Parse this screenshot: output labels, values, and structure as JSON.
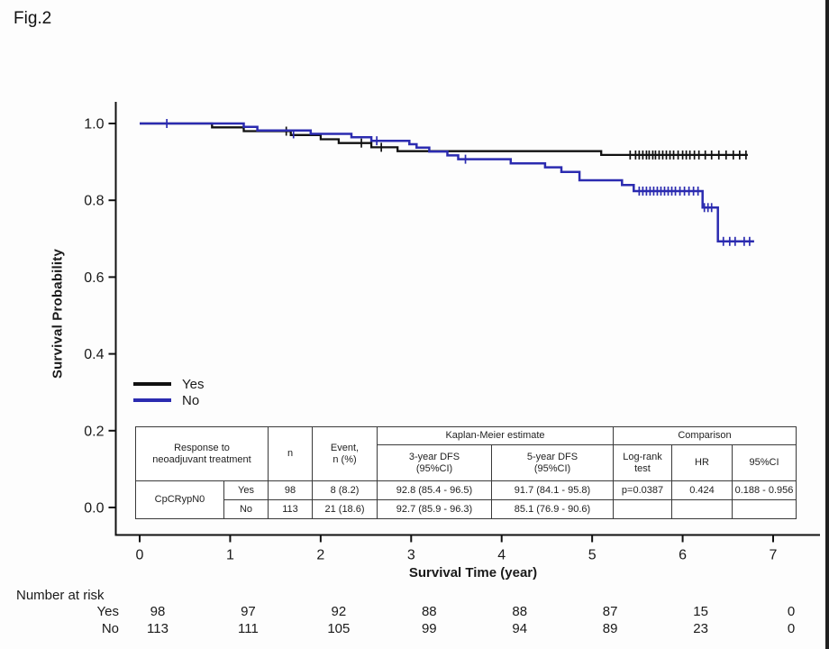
{
  "figure_label": "Fig.2",
  "axes": {
    "y_label": "Survival Probability",
    "x_label": "Survival Time (year)",
    "y_ticks": [
      0.0,
      0.2,
      0.4,
      0.6,
      0.8,
      1.0
    ],
    "x_ticks": [
      0,
      1,
      2,
      3,
      4,
      5,
      6,
      7
    ]
  },
  "legend": [
    {
      "label": "Yes",
      "color": "#111111"
    },
    {
      "label": "No",
      "color": "#2b2bb0"
    }
  ],
  "chart_data": {
    "type": "line",
    "subtype": "kaplan-meier-step",
    "title": "Fig.2",
    "xlabel": "Survival Time (year)",
    "ylabel": "Survival Probability",
    "xlim": [
      0,
      7
    ],
    "ylim": [
      0,
      1.05
    ],
    "grid": false,
    "legend_position": "left-middle",
    "series": [
      {
        "name": "Yes",
        "color": "#111111",
        "end": 6.72,
        "steps": [
          [
            0,
            1.0
          ],
          [
            0.8,
            0.99
          ],
          [
            1.15,
            0.98
          ],
          [
            1.67,
            0.97
          ],
          [
            2.0,
            0.959
          ],
          [
            2.2,
            0.949
          ],
          [
            2.56,
            0.938
          ],
          [
            2.85,
            0.928
          ],
          [
            5.1,
            0.918
          ]
        ],
        "censors": [
          [
            1.62,
            0.98
          ],
          [
            2.45,
            0.949
          ],
          [
            2.67,
            0.938
          ],
          [
            5.42,
            0.918
          ],
          [
            5.48,
            0.918
          ],
          [
            5.52,
            0.918
          ],
          [
            5.56,
            0.918
          ],
          [
            5.6,
            0.918
          ],
          [
            5.63,
            0.918
          ],
          [
            5.67,
            0.918
          ],
          [
            5.7,
            0.918
          ],
          [
            5.74,
            0.918
          ],
          [
            5.78,
            0.918
          ],
          [
            5.82,
            0.918
          ],
          [
            5.86,
            0.918
          ],
          [
            5.9,
            0.918
          ],
          [
            5.95,
            0.918
          ],
          [
            6.0,
            0.918
          ],
          [
            6.04,
            0.918
          ],
          [
            6.08,
            0.918
          ],
          [
            6.13,
            0.918
          ],
          [
            6.18,
            0.918
          ],
          [
            6.25,
            0.918
          ],
          [
            6.32,
            0.918
          ],
          [
            6.4,
            0.918
          ],
          [
            6.48,
            0.918
          ],
          [
            6.56,
            0.918
          ],
          [
            6.63,
            0.918
          ],
          [
            6.7,
            0.918
          ]
        ]
      },
      {
        "name": "No",
        "color": "#2b2bb0",
        "end": 6.79,
        "steps": [
          [
            0,
            1.0
          ],
          [
            1.15,
            0.991
          ],
          [
            1.3,
            0.982
          ],
          [
            1.89,
            0.973
          ],
          [
            2.34,
            0.964
          ],
          [
            2.56,
            0.955
          ],
          [
            2.98,
            0.946
          ],
          [
            3.06,
            0.937
          ],
          [
            3.2,
            0.927
          ],
          [
            3.4,
            0.917
          ],
          [
            3.52,
            0.907
          ],
          [
            4.1,
            0.896
          ],
          [
            4.48,
            0.886
          ],
          [
            4.66,
            0.874
          ],
          [
            4.86,
            0.852
          ],
          [
            5.33,
            0.84
          ],
          [
            5.46,
            0.824
          ],
          [
            6.22,
            0.781
          ],
          [
            6.39,
            0.693
          ]
        ],
        "censors": [
          [
            0.3,
            1.0
          ],
          [
            1.7,
            0.973
          ],
          [
            2.62,
            0.955
          ],
          [
            3.6,
            0.907
          ],
          [
            5.52,
            0.824
          ],
          [
            5.56,
            0.824
          ],
          [
            5.6,
            0.824
          ],
          [
            5.64,
            0.824
          ],
          [
            5.68,
            0.824
          ],
          [
            5.72,
            0.824
          ],
          [
            5.76,
            0.824
          ],
          [
            5.8,
            0.824
          ],
          [
            5.84,
            0.824
          ],
          [
            5.88,
            0.824
          ],
          [
            5.92,
            0.824
          ],
          [
            5.97,
            0.824
          ],
          [
            6.02,
            0.824
          ],
          [
            6.07,
            0.824
          ],
          [
            6.12,
            0.824
          ],
          [
            6.17,
            0.824
          ],
          [
            6.24,
            0.781
          ],
          [
            6.28,
            0.781
          ],
          [
            6.32,
            0.781
          ],
          [
            6.45,
            0.693
          ],
          [
            6.52,
            0.693
          ],
          [
            6.58,
            0.693
          ],
          [
            6.68,
            0.693
          ],
          [
            6.74,
            0.693
          ]
        ]
      }
    ]
  },
  "stats_table": {
    "header": {
      "group": "Response to\nneoadjuvant treatment",
      "n": "n",
      "event": "Event,\nn (%)",
      "km": "Kaplan-Meier estimate",
      "comparison": "Comparison",
      "dfs3": "3-year DFS\n(95%CI)",
      "dfs5": "5-year DFS\n(95%CI)",
      "logrank": "Log-rank\ntest",
      "hr": "HR",
      "ci": "95%CI"
    },
    "rows": [
      {
        "group": "CpCRypN0",
        "arm": "Yes",
        "n": "98",
        "event": "8 (8.2)",
        "dfs3": "92.8 (85.4 - 96.5)",
        "dfs5": "91.7 (84.1 - 95.8)",
        "logrank": "p=0.0387",
        "hr": "0.424",
        "ci": "0.188 - 0.956"
      },
      {
        "group": "",
        "arm": "No",
        "n": "113",
        "event": "21 (18.6)",
        "dfs3": "92.7 (85.9 - 96.3)",
        "dfs5": "85.1 (76.9 - 90.6)",
        "logrank": "",
        "hr": "",
        "ci": ""
      }
    ]
  },
  "risk_table": {
    "title": "Number at risk",
    "times": [
      0,
      1,
      2,
      3,
      4,
      5,
      6,
      7
    ],
    "rows": [
      {
        "label": "Yes",
        "counts": [
          98,
          97,
          92,
          88,
          88,
          87,
          15,
          0
        ]
      },
      {
        "label": "No",
        "counts": [
          113,
          111,
          105,
          99,
          94,
          89,
          23,
          0
        ]
      }
    ]
  }
}
